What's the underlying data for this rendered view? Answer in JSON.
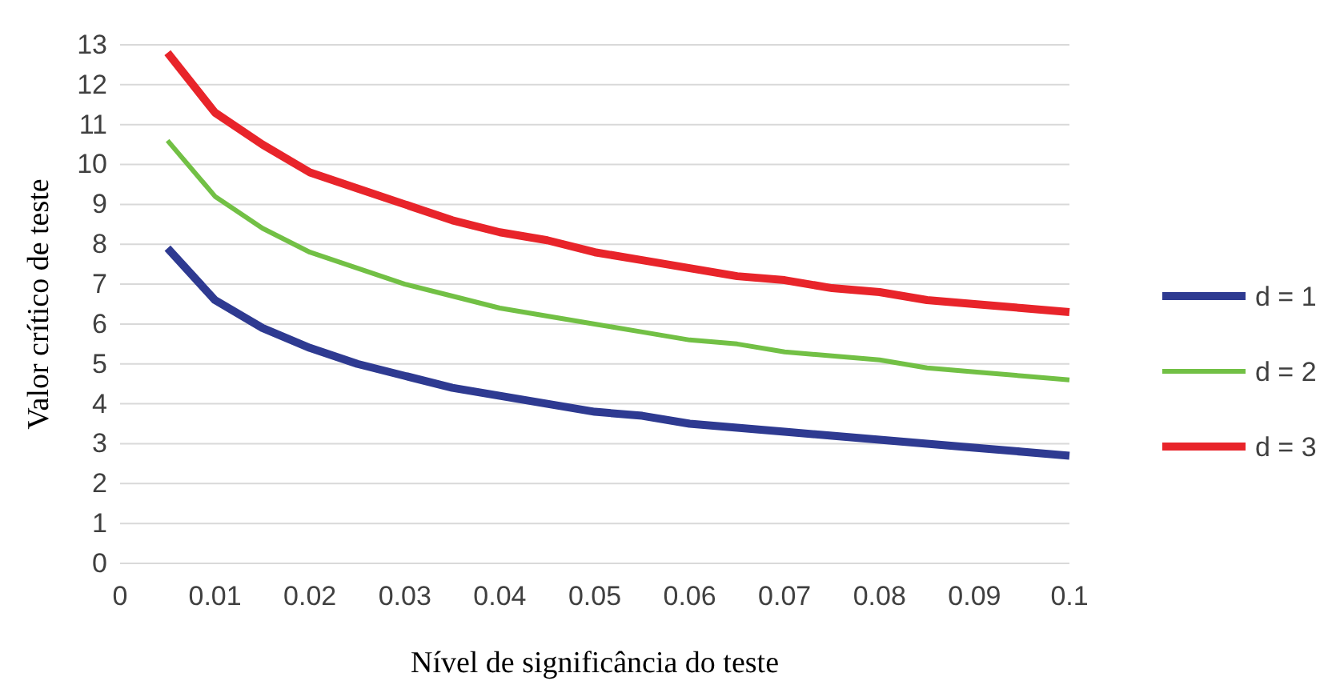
{
  "chart_data": {
    "type": "line",
    "xlabel": "Nível de significância do teste",
    "ylabel": "Valor crítico de teste",
    "x": [
      0.005,
      0.01,
      0.015,
      0.02,
      0.025,
      0.03,
      0.035,
      0.04,
      0.045,
      0.05,
      0.055,
      0.06,
      0.065,
      0.07,
      0.075,
      0.08,
      0.085,
      0.09,
      0.095,
      0.1
    ],
    "series": [
      {
        "name": "d = 1",
        "color": "#2e3a91",
        "values": [
          7.9,
          6.6,
          5.9,
          5.4,
          5.0,
          4.7,
          4.4,
          4.2,
          4.0,
          3.8,
          3.7,
          3.5,
          3.4,
          3.3,
          3.2,
          3.1,
          3.0,
          2.9,
          2.8,
          2.7
        ]
      },
      {
        "name": "d = 2",
        "color": "#72c045",
        "values": [
          10.6,
          9.2,
          8.4,
          7.8,
          7.4,
          7.0,
          6.7,
          6.4,
          6.2,
          6.0,
          5.8,
          5.6,
          5.5,
          5.3,
          5.2,
          5.1,
          4.9,
          4.8,
          4.7,
          4.6
        ]
      },
      {
        "name": "d = 3",
        "color": "#e8242a",
        "values": [
          12.8,
          11.3,
          10.5,
          9.8,
          9.4,
          9.0,
          8.6,
          8.3,
          8.1,
          7.8,
          7.6,
          7.4,
          7.2,
          7.1,
          6.9,
          6.8,
          6.6,
          6.5,
          6.4,
          6.3
        ]
      }
    ],
    "xlim": [
      0,
      0.1
    ],
    "xticks": [
      0,
      0.01,
      0.02,
      0.03,
      0.04,
      0.05,
      0.06,
      0.07,
      0.08,
      0.09,
      0.1
    ],
    "ylim": [
      0,
      13
    ],
    "yticks": [
      0,
      1,
      2,
      3,
      4,
      5,
      6,
      7,
      8,
      9,
      10,
      11,
      12,
      13
    ],
    "grid": "y",
    "legend": "right",
    "marker": "none",
    "line_style": "solid"
  }
}
